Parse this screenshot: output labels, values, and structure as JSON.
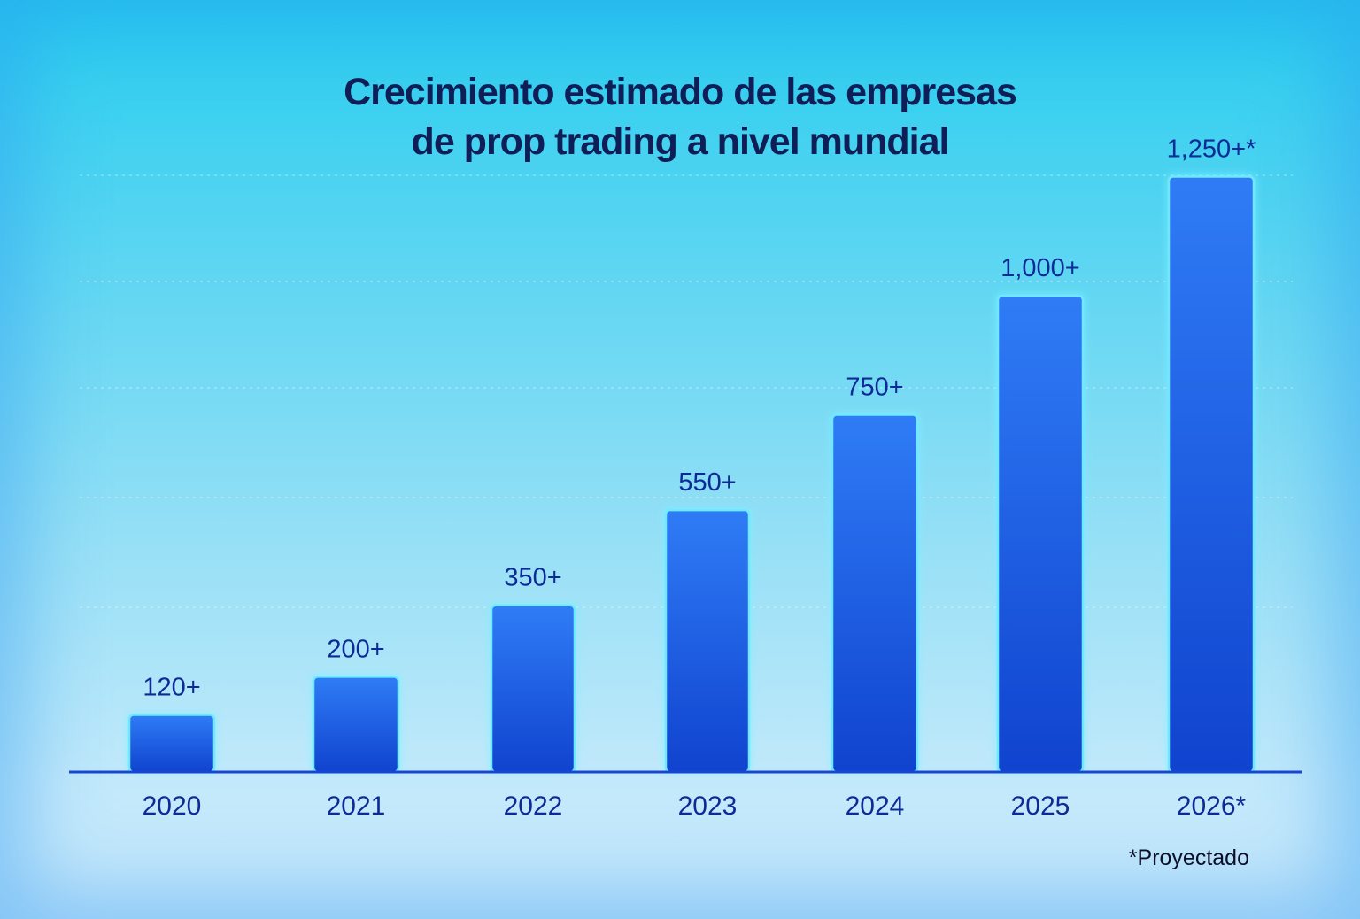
{
  "title_lines": [
    "Crecimiento estimado de las empresas",
    "de prop trading a nivel mundial"
  ],
  "footnote": "*Proyectado",
  "colors": {
    "bar_top": "#2f7cf6",
    "bar_bottom": "#1043cf",
    "bar_edge": "#6fe9ff",
    "text": "#0d2a96",
    "axis": "#1646d2"
  },
  "chart_data": {
    "type": "bar",
    "title": "Crecimiento estimado de las empresas de prop trading a nivel mundial",
    "categories": [
      "2020",
      "2021",
      "2022",
      "2023",
      "2024",
      "2025",
      "2026*"
    ],
    "values": [
      120,
      200,
      350,
      550,
      750,
      1000,
      1250
    ],
    "data_labels": [
      "120+",
      "200+",
      "350+",
      "550+",
      "750+",
      "1,000+",
      "1,250+*"
    ],
    "xlabel": "",
    "ylabel": "",
    "ylim": [
      0,
      1350
    ],
    "grid": true,
    "legend": "none",
    "note": "*Proyectado"
  }
}
